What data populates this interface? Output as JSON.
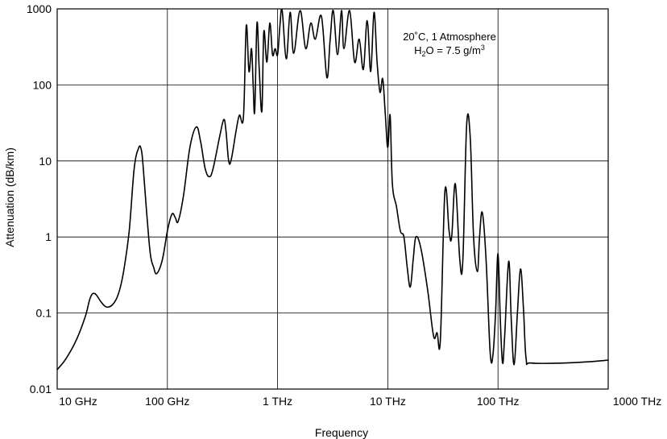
{
  "chart_data": {
    "type": "line",
    "title": "",
    "xlabel": "Frequency",
    "ylabel": "Attenuation (dB/km)",
    "x_scale": "log",
    "y_scale": "log",
    "xlim": [
      "10 GHz",
      "1000 THz"
    ],
    "ylim": [
      0.01,
      1000
    ],
    "grid": true,
    "x_ticks": [
      "10 GHz",
      "100 GHz",
      "1 THz",
      "10 THz",
      "100 THz",
      "1000 THz"
    ],
    "y_ticks": [
      "1000",
      "100",
      "10",
      "1",
      "0.1",
      "0.01"
    ],
    "annotation": {
      "line1": "20˚C, 1 Atmosphere",
      "line2_main": "H",
      "line2_sub": "2",
      "line2_mid": "O = 7.5 g/m",
      "line2_sup": "3"
    },
    "series": [
      {
        "name": "",
        "points": [
          [
            "10 GHz",
            0.018
          ],
          [
            "12 GHz",
            0.025
          ],
          [
            "15 GHz",
            0.045
          ],
          [
            "18 GHz",
            0.09
          ],
          [
            "20 GHz",
            0.16
          ],
          [
            "22 GHz",
            0.18
          ],
          [
            "25 GHz",
            0.14
          ],
          [
            "28 GHz",
            0.12
          ],
          [
            "32 GHz",
            0.13
          ],
          [
            "36 GHz",
            0.18
          ],
          [
            "40 GHz",
            0.35
          ],
          [
            "45 GHz",
            1.2
          ],
          [
            "50 GHz",
            8
          ],
          [
            "55 GHz",
            15
          ],
          [
            "58 GHz",
            14
          ],
          [
            "60 GHz",
            9
          ],
          [
            "65 GHz",
            2
          ],
          [
            "70 GHz",
            0.6
          ],
          [
            "75 GHz",
            0.4
          ],
          [
            "80 GHz",
            0.33
          ],
          [
            "90 GHz",
            0.5
          ],
          [
            "100 GHz",
            1.2
          ],
          [
            "110 GHz",
            2
          ],
          [
            "118 GHz",
            1.8
          ],
          [
            "125 GHz",
            1.6
          ],
          [
            "140 GHz",
            3.5
          ],
          [
            "160 GHz",
            15
          ],
          [
            "183 GHz",
            28
          ],
          [
            "200 GHz",
            18
          ],
          [
            "220 GHz",
            8
          ],
          [
            "240 GHz",
            6.2
          ],
          [
            "260 GHz",
            8
          ],
          [
            "300 GHz",
            22
          ],
          [
            "325 GHz",
            35
          ],
          [
            "340 GHz",
            25
          ],
          [
            "360 GHz",
            10
          ],
          [
            "380 GHz",
            10.5
          ],
          [
            "420 GHz",
            25
          ],
          [
            "450 GHz",
            40
          ],
          [
            "490 GHz",
            38
          ],
          [
            "520 GHz",
            600
          ],
          [
            "550 GHz",
            150
          ],
          [
            "580 GHz",
            300
          ],
          [
            "600 GHz",
            100
          ],
          [
            "620 GHz",
            45
          ],
          [
            "650 GHz",
            650
          ],
          [
            "680 GHz",
            170
          ],
          [
            "720 GHz",
            45
          ],
          [
            "750 GHz",
            500
          ],
          [
            "800 GHz",
            200
          ],
          [
            "850 GHz",
            650
          ],
          [
            "900 GHz",
            250
          ],
          [
            "950 GHz",
            300
          ],
          [
            "1 THz",
            250
          ],
          [
            "1.05 THz",
            600
          ],
          [
            "1.1 THz",
            950
          ],
          [
            "1.2 THz",
            220
          ],
          [
            "1.3 THz",
            900
          ],
          [
            "1.4 THz",
            260
          ],
          [
            "1.6 THz",
            950
          ],
          [
            "1.8 THz",
            300
          ],
          [
            "2 THz",
            650
          ],
          [
            "2.2 THz",
            400
          ],
          [
            "2.5 THz",
            800
          ],
          [
            "2.8 THz",
            125
          ],
          [
            "3 THz",
            400
          ],
          [
            "3.2 THz",
            950
          ],
          [
            "3.5 THz",
            250
          ],
          [
            "3.8 THz",
            950
          ],
          [
            "4 THz",
            300
          ],
          [
            "4.5 THz",
            950
          ],
          [
            "5 THz",
            200
          ],
          [
            "5.5 THz",
            400
          ],
          [
            "6 THz",
            160
          ],
          [
            "6.5 THz",
            700
          ],
          [
            "7 THz",
            150
          ],
          [
            "7.5 THz",
            900
          ],
          [
            "8 THz",
            200
          ],
          [
            "8.5 THz",
            80
          ],
          [
            "9 THz",
            120
          ],
          [
            "9.5 THz",
            40
          ],
          [
            "10 THz",
            15
          ],
          [
            "10.5 THz",
            40
          ],
          [
            "11 THz",
            5
          ],
          [
            "12 THz",
            2.5
          ],
          [
            "13 THz",
            1.2
          ],
          [
            "14 THz",
            1
          ],
          [
            "15 THz",
            0.4
          ],
          [
            "16 THz",
            0.22
          ],
          [
            "17 THz",
            0.5
          ],
          [
            "18 THz",
            1
          ],
          [
            "20 THz",
            0.7
          ],
          [
            "23 THz",
            0.2
          ],
          [
            "26 THz",
            0.05
          ],
          [
            "28 THz",
            0.055
          ],
          [
            "30 THz",
            0.045
          ],
          [
            "33 THz",
            4
          ],
          [
            "36 THz",
            1.2
          ],
          [
            "38 THz",
            1
          ],
          [
            "41 THz",
            5
          ],
          [
            "45 THz",
            0.5
          ],
          [
            "48 THz",
            0.5
          ],
          [
            "52 THz",
            30
          ],
          [
            "56 THz",
            20
          ],
          [
            "60 THz",
            1
          ],
          [
            "65 THz",
            0.35
          ],
          [
            "68 THz",
            1
          ],
          [
            "72 THz",
            2.1
          ],
          [
            "78 THz",
            0.5
          ],
          [
            "85 THz",
            0.03
          ],
          [
            "90 THz",
            0.028
          ],
          [
            "95 THz",
            0.1
          ],
          [
            "100 THz",
            0.6
          ],
          [
            "105 THz",
            0.08
          ],
          [
            "110 THz",
            0.022
          ],
          [
            "115 THz",
            0.05
          ],
          [
            "125 THz",
            0.48
          ],
          [
            "132 THz",
            0.08
          ],
          [
            "140 THz",
            0.021
          ],
          [
            "150 THz",
            0.1
          ],
          [
            "160 THz",
            0.38
          ],
          [
            "170 THz",
            0.12
          ],
          [
            "180 THz",
            0.025
          ],
          [
            "200 THz",
            0.022
          ],
          [
            "400 THz",
            0.022
          ],
          [
            "700 THz",
            0.023
          ],
          [
            "1000 THz",
            0.024
          ]
        ]
      }
    ]
  }
}
